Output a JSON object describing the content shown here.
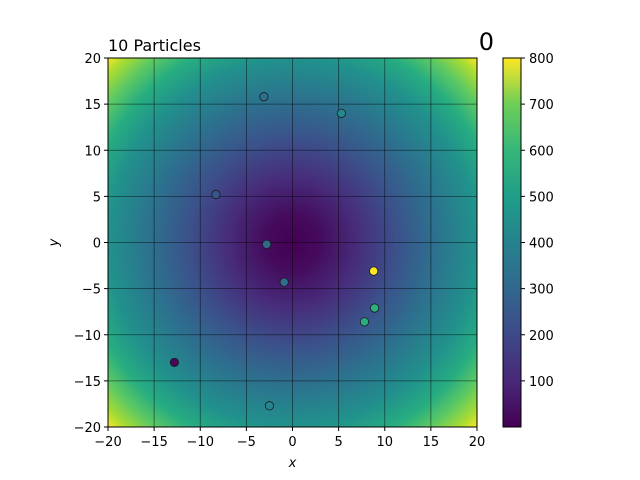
{
  "chart_data": {
    "type": "scatter",
    "title_left": "10 Particles",
    "title_right": "0",
    "xlabel": "x",
    "ylabel": "y",
    "xlim": [
      -20,
      20
    ],
    "ylim": [
      -20,
      20
    ],
    "xticks": [
      -20,
      -15,
      -10,
      -5,
      0,
      5,
      10,
      15,
      20
    ],
    "yticks": [
      -20,
      -15,
      -10,
      -5,
      0,
      5,
      10,
      15,
      20
    ],
    "grid": true,
    "background": "heatmap of x^2 + y^2",
    "colormap": "viridis",
    "colorbar": {
      "range": [
        0,
        800
      ],
      "ticks": [
        100,
        200,
        300,
        400,
        500,
        600,
        700,
        800
      ]
    },
    "points": [
      {
        "x": -3.1,
        "y": 15.8,
        "value": 330
      },
      {
        "x": 5.3,
        "y": 14.0,
        "value": 420
      },
      {
        "x": -8.3,
        "y": 5.2,
        "value": 240
      },
      {
        "x": -2.8,
        "y": -0.2,
        "value": 300
      },
      {
        "x": -0.9,
        "y": -4.3,
        "value": 320
      },
      {
        "x": 8.8,
        "y": -3.1,
        "value": 800
      },
      {
        "x": 8.9,
        "y": -7.1,
        "value": 570
      },
      {
        "x": 7.8,
        "y": -8.6,
        "value": 560
      },
      {
        "x": -12.8,
        "y": -13.0,
        "value": 20
      },
      {
        "x": -2.5,
        "y": -17.7,
        "value": 410
      }
    ]
  }
}
